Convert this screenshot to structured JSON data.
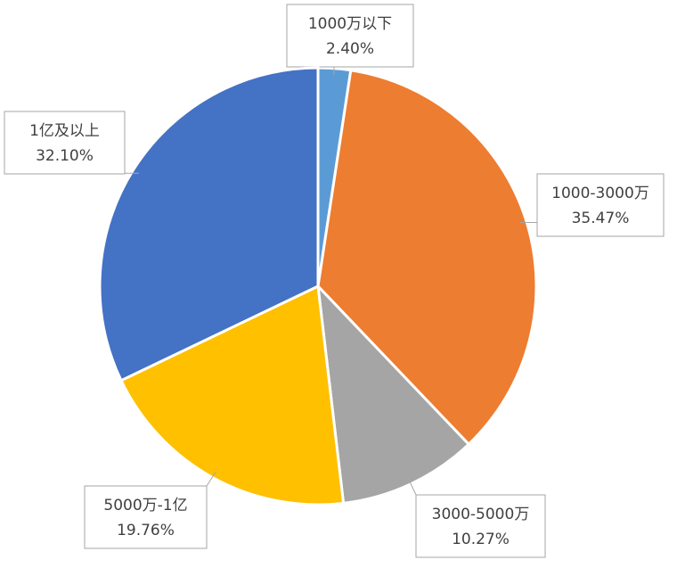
{
  "chart_data": {
    "type": "pie",
    "categories": [
      "1000万以下",
      "1000-3000万",
      "3000-5000万",
      "5000万-1亿",
      "1亿及以上"
    ],
    "values": [
      2.4,
      35.47,
      10.27,
      19.76,
      32.1
    ],
    "value_labels": [
      "2.40%",
      "35.47%",
      "10.27%",
      "19.76%",
      "32.10%"
    ],
    "colors": [
      "#5b9bd5",
      "#ed7d31",
      "#a5a5a5",
      "#ffc000",
      "#4472c4"
    ]
  }
}
